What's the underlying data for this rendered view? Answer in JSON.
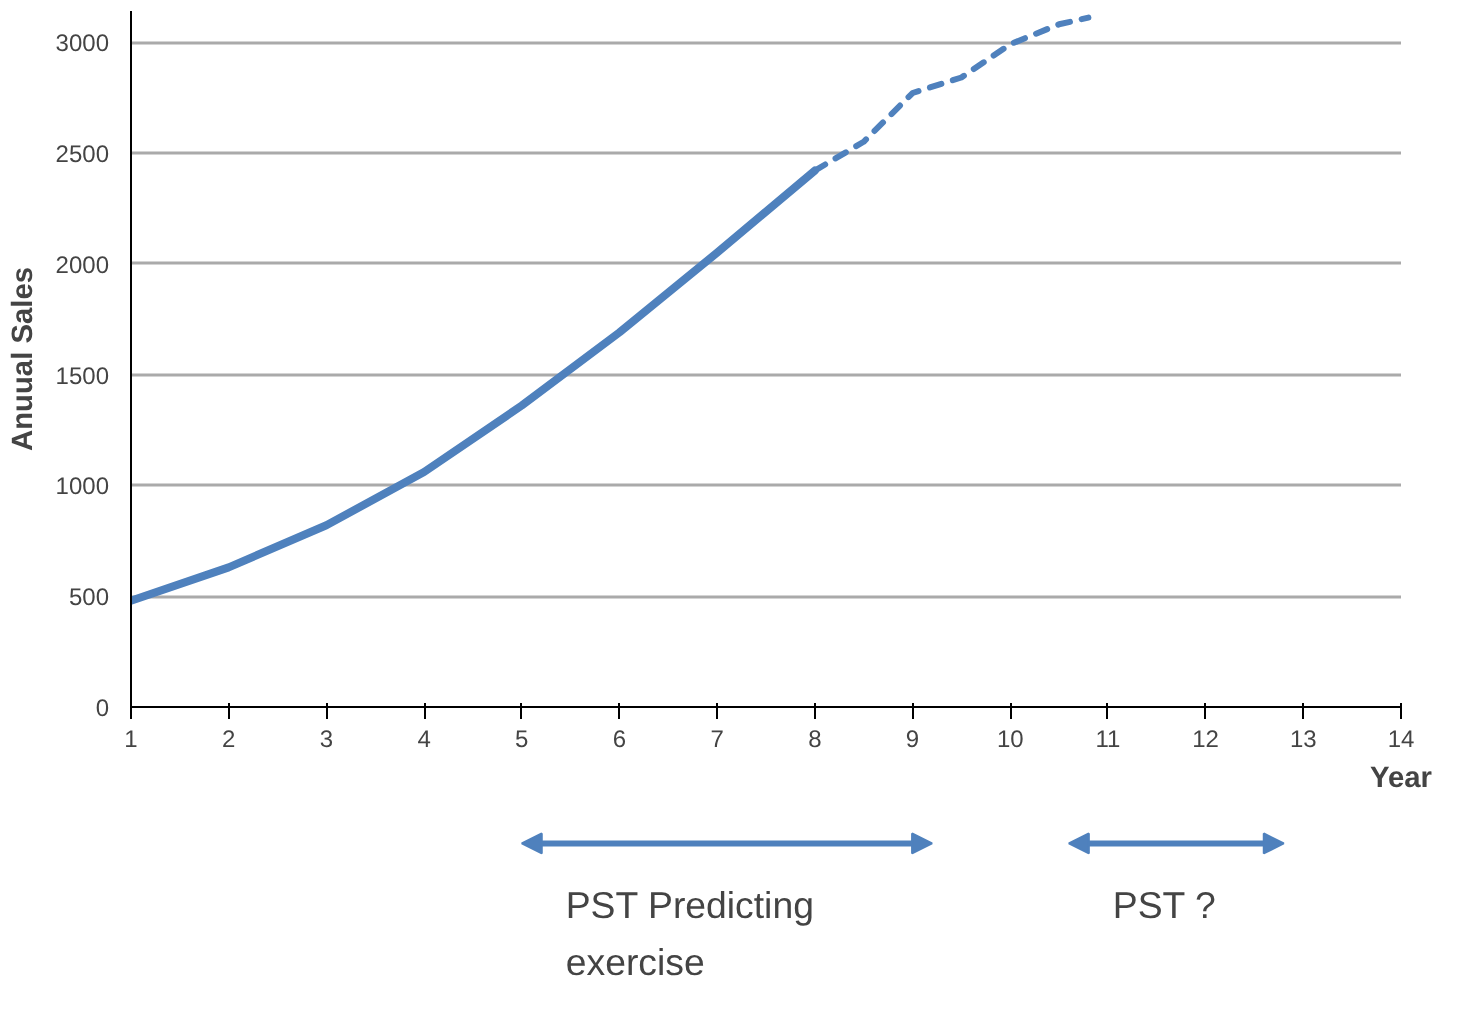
{
  "chart_data": {
    "type": "line",
    "xlabel": "Year",
    "ylabel": "Anuual Sales",
    "xlim": [
      1,
      14
    ],
    "xticks": [
      1,
      2,
      3,
      4,
      5,
      6,
      7,
      8,
      9,
      10,
      11,
      12,
      13,
      14
    ],
    "ylim": [
      0,
      3140
    ],
    "yticks": [
      0,
      500,
      1000,
      1500,
      2000,
      2500,
      3000
    ],
    "grid": "y",
    "series": [
      {
        "color": "#4f81bd",
        "line_style": "solid",
        "x": [
          1,
          2,
          3,
          4,
          5,
          6,
          7,
          8
        ],
        "values": [
          480,
          630,
          820,
          1060,
          1360,
          1690,
          2050,
          2420
        ]
      },
      {
        "color": "#4f81bd",
        "line_style": "dashed",
        "x": [
          8,
          8.5,
          9,
          9.5,
          10,
          10.5,
          10.8
        ],
        "values": [
          2420,
          2550,
          2770,
          2840,
          2990,
          3080,
          3110
        ]
      }
    ],
    "annotations": [
      "PST Predicting exercise",
      "PST ?"
    ]
  }
}
